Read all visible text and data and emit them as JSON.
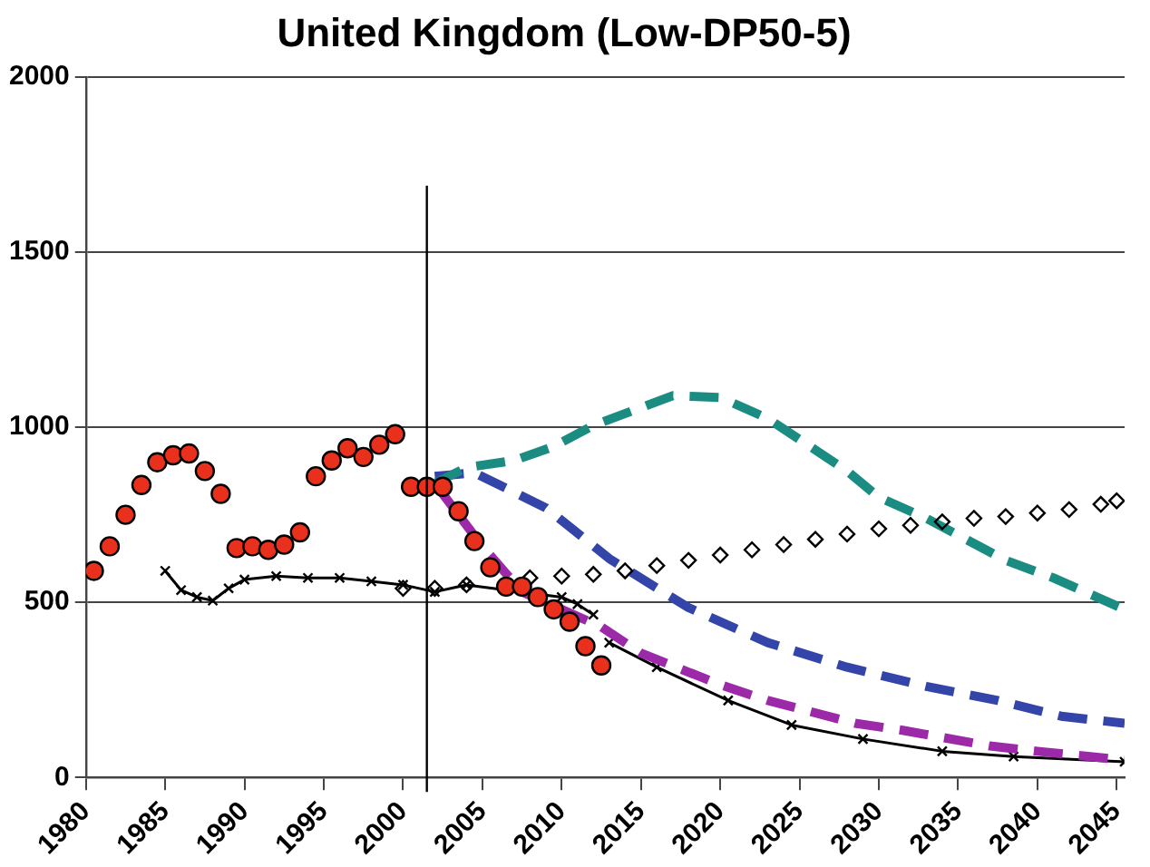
{
  "chart_data": {
    "type": "line",
    "title": "United Kingdom (Low-DP50-5)",
    "xlim": [
      1980,
      2045.5
    ],
    "xticks": [
      1980,
      1985,
      1990,
      1995,
      2000,
      2005,
      2010,
      2015,
      2020,
      2025,
      2030,
      2035,
      2040,
      2045
    ],
    "ylim": [
      0,
      2000
    ],
    "yticks": [
      0,
      500,
      1000,
      1500,
      2000
    ],
    "grid": "y",
    "legend": false,
    "ref_lines": [
      {
        "axis": "x",
        "value": 2001.5,
        "color": "#000000"
      }
    ],
    "series": [
      {
        "type": "scatter",
        "marker": "circle",
        "color": "#e8301c",
        "x": [
          1980.5,
          1981.5,
          1982.5,
          1983.5,
          1984.5,
          1985.5,
          1986.5,
          1987.5,
          1988.5,
          1989.5,
          1990.5,
          1991.5,
          1992.5,
          1993.5,
          1994.5,
          1995.5,
          1996.5,
          1997.5,
          1998.5,
          1999.5,
          2000.5,
          2001.5,
          2002.5,
          2003.5,
          2004.5,
          2005.5,
          2006.5,
          2007.5,
          2008.5,
          2009.5,
          2010.5,
          2011.5,
          2012.5
        ],
        "values": [
          590,
          660,
          750,
          835,
          900,
          920,
          925,
          875,
          810,
          655,
          660,
          650,
          665,
          700,
          860,
          905,
          940,
          915,
          950,
          980,
          830,
          830,
          830,
          760,
          675,
          600,
          545,
          545,
          515,
          480,
          445,
          375,
          320
        ]
      },
      {
        "type": "line",
        "marker": "cross",
        "line_style": "solid",
        "color": "#000000",
        "x": [
          1985,
          1986,
          1987,
          1988,
          1989,
          1990,
          1992,
          1994,
          1996,
          1998,
          2000,
          2002,
          2004,
          2006,
          2008,
          2010,
          2011,
          2012
        ],
        "values": [
          590,
          535,
          515,
          505,
          540,
          565,
          575,
          570,
          570,
          560,
          550,
          530,
          550,
          null,
          null,
          515,
          495,
          465
        ]
      },
      {
        "type": "scatter",
        "marker": "diamond",
        "color": "#000000",
        "x": [
          2000,
          2002,
          2004,
          2006,
          2008,
          2010,
          2012,
          2014,
          2016,
          2018,
          2020,
          2022,
          2024,
          2026,
          2028,
          2030,
          2032,
          2034,
          2036,
          2038,
          2040,
          2042,
          2044,
          2045
        ],
        "values": [
          540,
          540,
          550,
          null,
          570,
          575,
          580,
          590,
          605,
          620,
          635,
          650,
          665,
          680,
          695,
          710,
          720,
          730,
          740,
          745,
          755,
          765,
          780,
          790
        ]
      },
      {
        "type": "line",
        "marker": "none",
        "line_style": "dashed",
        "color": "#1a8c82",
        "x": [
          2002,
          2004,
          2007,
          2009.5,
          2012,
          2017,
          2020,
          2023,
          2028,
          2030,
          2033,
          2038,
          2041,
          2045.5
        ],
        "values": [
          840,
          885,
          905,
          945,
          1005,
          1090,
          1085,
          1025,
          875,
          800,
          740,
          620,
          570,
          480
        ]
      },
      {
        "type": "line",
        "marker": "none",
        "line_style": "dashed",
        "color": "#3345a8",
        "x": [
          2002,
          2004.5,
          2009,
          2013,
          2018,
          2023,
          2028,
          2033,
          2037.5,
          2041.5,
          2045.5
        ],
        "values": [
          860,
          870,
          770,
          625,
          485,
          385,
          315,
          260,
          220,
          175,
          155
        ]
      },
      {
        "type": "line",
        "marker": "none",
        "line_style": "dashed",
        "color": "#9c2aa8",
        "x": [
          2002,
          2005,
          2007.5,
          2012.5,
          2015,
          2020,
          2023,
          2028.5,
          2031.5,
          2037,
          2040,
          2045.5
        ],
        "values": [
          840,
          660,
          530,
          430,
          355,
          265,
          220,
          155,
          135,
          90,
          75,
          50
        ]
      },
      {
        "type": "line",
        "marker": "cross",
        "line_style": "solid",
        "color": "#000000",
        "x": [
          2013,
          2016,
          2020.5,
          2024.5,
          2029,
          2034,
          2038.5,
          2045.5
        ],
        "values": [
          385,
          315,
          220,
          150,
          110,
          75,
          60,
          45
        ]
      }
    ]
  }
}
